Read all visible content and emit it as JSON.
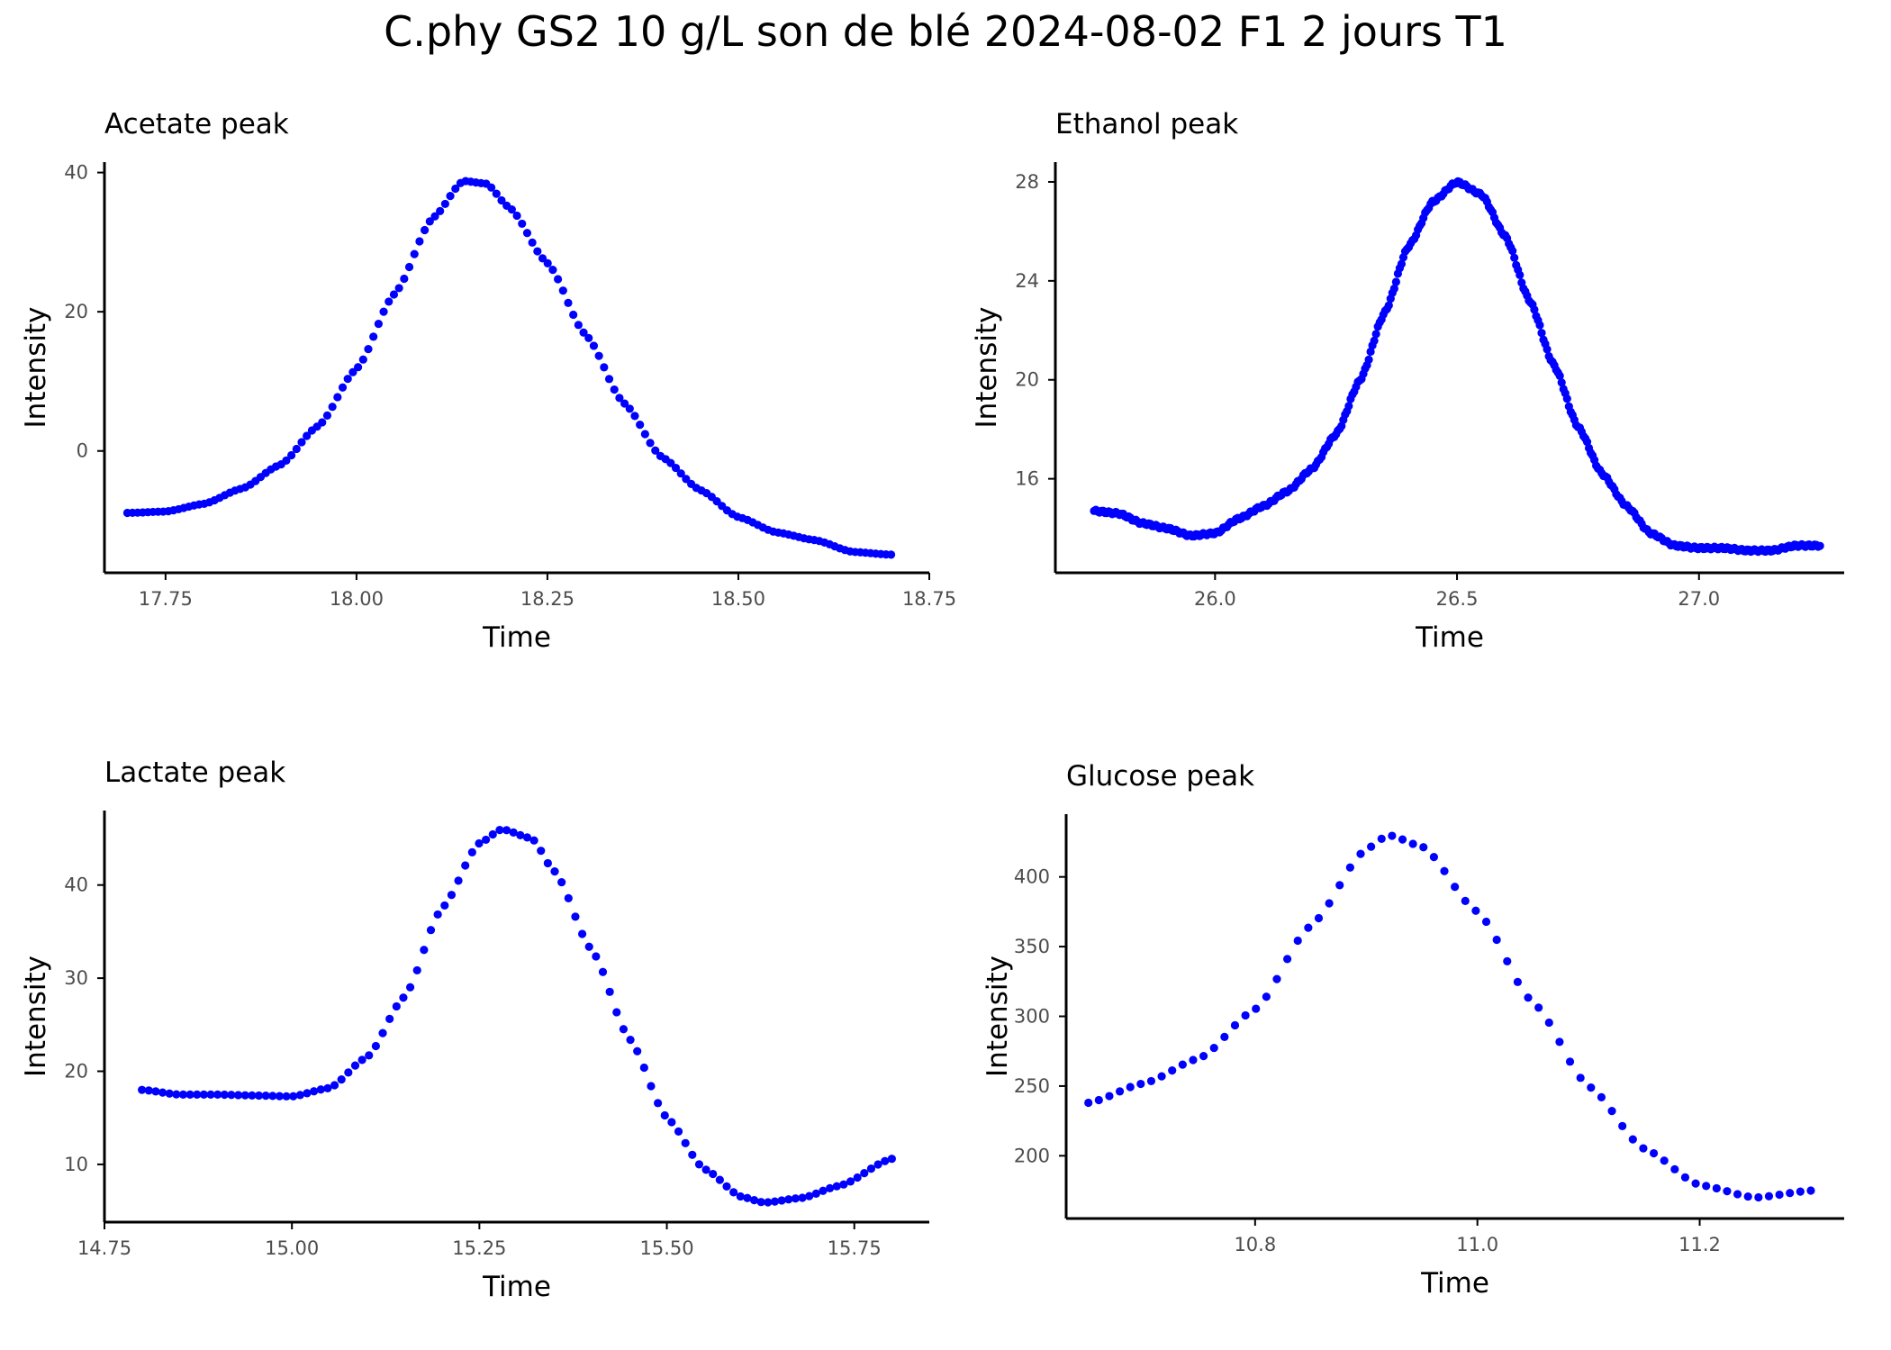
{
  "figure": {
    "title": "C.phy GS2 10 g/L son de blé 2024-08-02 F1 2 jours T1"
  },
  "colors": {
    "points": "#0000ff",
    "axis": "#000000",
    "tick_text": "#4d4d4d"
  },
  "chart_data": [
    {
      "type": "scatter",
      "title": "Acetate peak",
      "xlabel": "Time",
      "ylabel": "Intensity",
      "xlim": [
        17.67,
        18.75
      ],
      "ylim": [
        -17.5,
        41.5
      ],
      "xticks": [
        "17.75",
        "18.00",
        "18.25",
        "18.50",
        "18.75"
      ],
      "yticks": [
        "0",
        "20",
        "40"
      ],
      "grid": false,
      "profile": [
        [
          17.7,
          -8.9
        ],
        [
          17.75,
          -8.7
        ],
        [
          17.8,
          -7.6
        ],
        [
          17.85,
          -5.4
        ],
        [
          17.9,
          -2.0
        ],
        [
          17.95,
          3.6
        ],
        [
          18.0,
          11.8
        ],
        [
          18.05,
          22.6
        ],
        [
          18.1,
          33.5
        ],
        [
          18.14,
          38.8
        ],
        [
          18.17,
          38.4
        ],
        [
          18.2,
          35.0
        ],
        [
          18.25,
          27.0
        ],
        [
          18.3,
          16.7
        ],
        [
          18.35,
          6.9
        ],
        [
          18.4,
          -0.9
        ],
        [
          18.45,
          -5.6
        ],
        [
          18.5,
          -9.5
        ],
        [
          18.55,
          -11.7
        ],
        [
          18.6,
          -12.8
        ],
        [
          18.65,
          -14.5
        ],
        [
          18.7,
          -14.9
        ]
      ],
      "n_points": 150,
      "noise": 0
    },
    {
      "type": "scatter",
      "title": "Ethanol peak",
      "xlabel": "Time",
      "ylabel": "Intensity",
      "xlim": [
        25.67,
        27.3
      ],
      "ylim": [
        12.2,
        28.8
      ],
      "xticks": [
        "26.0",
        "26.5",
        "27.0"
      ],
      "yticks": [
        "16",
        "20",
        "24",
        "28"
      ],
      "grid": false,
      "profile": [
        [
          25.75,
          14.7
        ],
        [
          25.8,
          14.6
        ],
        [
          25.85,
          14.2
        ],
        [
          25.9,
          14.0
        ],
        [
          25.95,
          13.7
        ],
        [
          26.0,
          13.8
        ],
        [
          26.05,
          14.4
        ],
        [
          26.1,
          14.9
        ],
        [
          26.15,
          15.5
        ],
        [
          26.2,
          16.4
        ],
        [
          26.25,
          17.8
        ],
        [
          26.3,
          20.0
        ],
        [
          26.35,
          22.7
        ],
        [
          26.4,
          25.4
        ],
        [
          26.45,
          27.2
        ],
        [
          26.5,
          28.0
        ],
        [
          26.55,
          27.5
        ],
        [
          26.6,
          25.8
        ],
        [
          26.65,
          23.2
        ],
        [
          26.7,
          20.6
        ],
        [
          26.75,
          18.1
        ],
        [
          26.8,
          16.2
        ],
        [
          26.85,
          14.9
        ],
        [
          26.9,
          13.8
        ],
        [
          26.95,
          13.3
        ],
        [
          27.0,
          13.2
        ],
        [
          27.05,
          13.2
        ],
        [
          27.1,
          13.1
        ],
        [
          27.15,
          13.1
        ],
        [
          27.2,
          13.3
        ],
        [
          27.25,
          13.3
        ]
      ],
      "n_points": 400,
      "noise": 0.05
    },
    {
      "type": "scatter",
      "title": "Lactate peak",
      "xlabel": "Time",
      "ylabel": "Intensity",
      "xlim": [
        14.75,
        15.85
      ],
      "ylim": [
        3.8,
        48.0
      ],
      "xticks": [
        "14.75",
        "15.00",
        "15.25",
        "15.50",
        "15.75"
      ],
      "yticks": [
        "10",
        "20",
        "30",
        "40"
      ],
      "grid": false,
      "profile": [
        [
          14.8,
          18.0
        ],
        [
          14.85,
          17.5
        ],
        [
          14.9,
          17.5
        ],
        [
          14.95,
          17.4
        ],
        [
          15.0,
          17.3
        ],
        [
          15.05,
          18.2
        ],
        [
          15.1,
          21.5
        ],
        [
          15.15,
          28.0
        ],
        [
          15.2,
          37.5
        ],
        [
          15.25,
          44.5
        ],
        [
          15.28,
          46.0
        ],
        [
          15.32,
          45.0
        ],
        [
          15.35,
          41.5
        ],
        [
          15.4,
          33.0
        ],
        [
          15.45,
          23.5
        ],
        [
          15.5,
          15.0
        ],
        [
          15.55,
          9.5
        ],
        [
          15.6,
          6.5
        ],
        [
          15.63,
          5.9
        ],
        [
          15.68,
          6.4
        ],
        [
          15.73,
          7.7
        ],
        [
          15.8,
          10.6
        ]
      ],
      "n_points": 110,
      "noise": 0
    },
    {
      "type": "scatter",
      "title": "Glucose peak",
      "xlabel": "Time",
      "ylabel": "Intensity",
      "xlim": [
        10.63,
        11.33
      ],
      "ylim": [
        155,
        445
      ],
      "xticks": [
        "10.8",
        "11.0",
        "11.2"
      ],
      "yticks": [
        "200",
        "250",
        "300",
        "350",
        "400"
      ],
      "grid": false,
      "profile": [
        [
          10.65,
          238
        ],
        [
          10.7,
          252
        ],
        [
          10.75,
          270
        ],
        [
          10.8,
          305
        ],
        [
          10.85,
          365
        ],
        [
          10.9,
          420
        ],
        [
          10.92,
          430
        ],
        [
          10.95,
          422
        ],
        [
          11.0,
          375
        ],
        [
          11.05,
          310
        ],
        [
          11.1,
          250
        ],
        [
          11.15,
          205
        ],
        [
          11.2,
          179
        ],
        [
          11.25,
          170
        ],
        [
          11.3,
          175
        ]
      ],
      "n_points": 70,
      "noise": 0
    }
  ]
}
